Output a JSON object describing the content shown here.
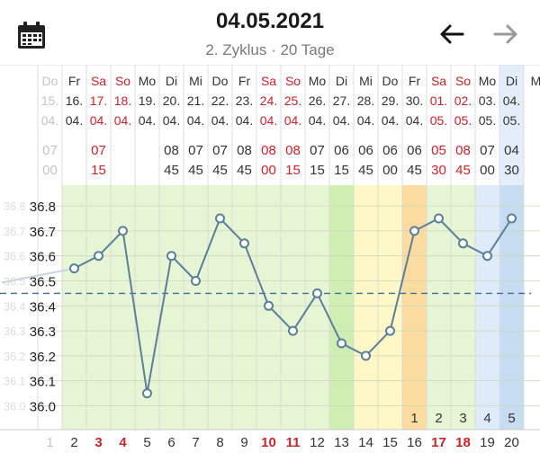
{
  "header": {
    "date": "04.05.2021",
    "cycle_info": "2. Zyklus · 20 Tage"
  },
  "icons": {
    "calendar": "calendar-icon",
    "back": "arrow-left-icon",
    "forward": "arrow-right-icon"
  },
  "colors": {
    "red": "#d0202a",
    "line": "#5b7f9c",
    "coverline": "#3f6f9c",
    "bg_green": "#e6f5d4",
    "bg_green_dark": "#cfeeb1",
    "bg_yellow": "#fdf8c6",
    "bg_orange": "#fbdc9e",
    "bg_blue": "#deebfb",
    "bg_blue_dark": "#c8dcf1"
  },
  "days": [
    {
      "wd": "Do",
      "d": "15.",
      "m": "04.",
      "hh": "07",
      "mm": "00",
      "n": "1"
    },
    {
      "wd": "Fr",
      "d": "16.",
      "m": "04.",
      "hh": "",
      "mm": "",
      "n": "2"
    },
    {
      "wd": "Sa",
      "d": "17.",
      "m": "04.",
      "hh": "07",
      "mm": "15",
      "n": "3"
    },
    {
      "wd": "So",
      "d": "18.",
      "m": "04.",
      "hh": "",
      "mm": "",
      "n": "4"
    },
    {
      "wd": "Mo",
      "d": "19.",
      "m": "04.",
      "hh": "",
      "mm": "",
      "n": "5"
    },
    {
      "wd": "Di",
      "d": "20.",
      "m": "04.",
      "hh": "08",
      "mm": "45",
      "n": "6"
    },
    {
      "wd": "Mi",
      "d": "21.",
      "m": "04.",
      "hh": "07",
      "mm": "45",
      "n": "7"
    },
    {
      "wd": "Do",
      "d": "22.",
      "m": "04.",
      "hh": "07",
      "mm": "45",
      "n": "8"
    },
    {
      "wd": "Fr",
      "d": "23.",
      "m": "04.",
      "hh": "08",
      "mm": "45",
      "n": "9"
    },
    {
      "wd": "Sa",
      "d": "24.",
      "m": "04.",
      "hh": "08",
      "mm": "00",
      "n": "10"
    },
    {
      "wd": "So",
      "d": "25.",
      "m": "04.",
      "hh": "08",
      "mm": "15",
      "n": "11"
    },
    {
      "wd": "Mo",
      "d": "26.",
      "m": "04.",
      "hh": "07",
      "mm": "15",
      "n": "12"
    },
    {
      "wd": "Di",
      "d": "27.",
      "m": "04.",
      "hh": "06",
      "mm": "15",
      "n": "13"
    },
    {
      "wd": "Mi",
      "d": "28.",
      "m": "04.",
      "hh": "06",
      "mm": "45",
      "n": "14"
    },
    {
      "wd": "Do",
      "d": "29.",
      "m": "04.",
      "hh": "06",
      "mm": "00",
      "n": "15"
    },
    {
      "wd": "Fr",
      "d": "30.",
      "m": "04.",
      "hh": "06",
      "mm": "45",
      "n": "16"
    },
    {
      "wd": "Sa",
      "d": "01.",
      "m": "05.",
      "hh": "05",
      "mm": "30",
      "n": "17"
    },
    {
      "wd": "So",
      "d": "02.",
      "m": "05.",
      "hh": "08",
      "mm": "45",
      "n": "18"
    },
    {
      "wd": "Mo",
      "d": "03.",
      "m": "05.",
      "hh": "07",
      "mm": "00",
      "n": "19"
    },
    {
      "wd": "Di",
      "d": "04.",
      "m": "05.",
      "hh": "04",
      "mm": "30",
      "n": "20"
    },
    {
      "wd": "M",
      "d": "",
      "m": "",
      "hh": "",
      "mm": "",
      "n": ""
    }
  ],
  "post_ovulation_days": [
    "1",
    "2",
    "3",
    "4",
    "5"
  ],
  "chart_data": {
    "type": "line",
    "x": [
      2,
      3,
      4,
      5,
      6,
      7,
      8,
      9,
      10,
      11,
      12,
      13,
      14,
      15,
      16,
      17,
      18,
      19,
      20
    ],
    "y": [
      36.55,
      36.6,
      36.7,
      36.05,
      36.6,
      36.5,
      36.75,
      36.65,
      36.4,
      36.3,
      36.45,
      36.25,
      36.2,
      36.3,
      36.7,
      36.75,
      36.65,
      36.6,
      36.75
    ],
    "ylim": [
      35.9,
      37.0
    ],
    "yticks": [
      "36.0",
      "36.1",
      "36.2",
      "36.3",
      "36.4",
      "36.5",
      "36.6",
      "36.7",
      "36.8"
    ],
    "coverline": 36.45,
    "grid": true
  }
}
